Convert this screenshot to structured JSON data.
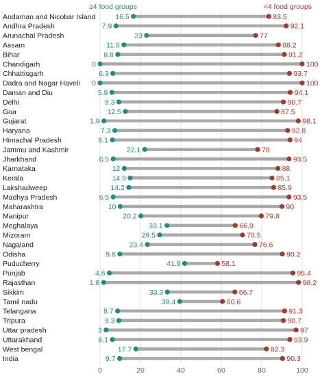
{
  "chart_data": {
    "type": "dumbbell",
    "series": [
      {
        "name": "≥4 food groups",
        "color": "#2a8a7a"
      },
      {
        "name": "<4 food groups",
        "color": "#a23a2e"
      }
    ],
    "xlim": [
      0,
      100
    ],
    "x_ticks": [
      0,
      20,
      40,
      60,
      80,
      100
    ],
    "grid": true,
    "legend_position": "top",
    "rows": [
      {
        "state": "Andaman and Nicobar Island",
        "low": 16.5,
        "high": 83.5
      },
      {
        "state": "Andhra Pradesh",
        "low": 7.9,
        "high": 92.1
      },
      {
        "state": "Arunachal Pradesh",
        "low": 23,
        "high": 77
      },
      {
        "state": "Assam",
        "low": 11.8,
        "high": 88.2
      },
      {
        "state": "Bihar",
        "low": 8.8,
        "high": 91.2
      },
      {
        "state": "Chandigarh",
        "low": 0,
        "high": 100
      },
      {
        "state": "Chhattisgarh",
        "low": 6.3,
        "high": 93.7
      },
      {
        "state": "Dadra and Nagar Haveli",
        "low": 0,
        "high": 100
      },
      {
        "state": "Daman and Diu",
        "low": 5.9,
        "high": 94.1
      },
      {
        "state": "Delhi",
        "low": 9.3,
        "high": 90.7
      },
      {
        "state": "Goa",
        "low": 12.5,
        "high": 87.5
      },
      {
        "state": "Gujarat",
        "low": 1.9,
        "high": 98.1
      },
      {
        "state": "Haryana",
        "low": 7.3,
        "high": 92.8
      },
      {
        "state": "Himachal Pradesh",
        "low": 6.1,
        "high": 94
      },
      {
        "state": "Jammu and Kashmir",
        "low": 22.1,
        "high": 78
      },
      {
        "state": "Jharkhand",
        "low": 6.5,
        "high": 93.5
      },
      {
        "state": "Karnataka",
        "low": 12,
        "high": 88
      },
      {
        "state": "Kerala",
        "low": 14.9,
        "high": 85.1
      },
      {
        "state": "Lakshadweep",
        "low": 14.2,
        "high": 85.9
      },
      {
        "state": "Madhya Pradesh",
        "low": 6.5,
        "high": 93.5
      },
      {
        "state": "Maharashtra",
        "low": 10,
        "high": 90
      },
      {
        "state": "Manipur",
        "low": 20.2,
        "high": 79.8
      },
      {
        "state": "Meghalaya",
        "low": 33.1,
        "high": 66.9
      },
      {
        "state": "Mizoram",
        "low": 29.5,
        "high": 70.5
      },
      {
        "state": "Nagaland",
        "low": 23.4,
        "high": 76.6
      },
      {
        "state": "Odisha",
        "low": 9.8,
        "high": 90.2
      },
      {
        "state": "Puducherry",
        "low": 41.9,
        "high": 58.1
      },
      {
        "state": "Punjab",
        "low": 4.6,
        "high": 95.4
      },
      {
        "state": "Rajasthan",
        "low": 1.8,
        "high": 98.2
      },
      {
        "state": "Sikkim",
        "low": 33.3,
        "high": 66.7
      },
      {
        "state": "Tamil nadu",
        "low": 39.4,
        "high": 60.6
      },
      {
        "state": "Telangana",
        "low": 8.7,
        "high": 91.3
      },
      {
        "state": "Tripura",
        "low": 9.3,
        "high": 90.7
      },
      {
        "state": "Uttar pradesh",
        "low": 3,
        "high": 97
      },
      {
        "state": "Uttarakhand",
        "low": 6.1,
        "high": 93.9
      },
      {
        "state": "West bengal",
        "low": 17.7,
        "high": 82.3
      },
      {
        "state": "India",
        "low": 9.7,
        "high": 90.3
      }
    ]
  }
}
